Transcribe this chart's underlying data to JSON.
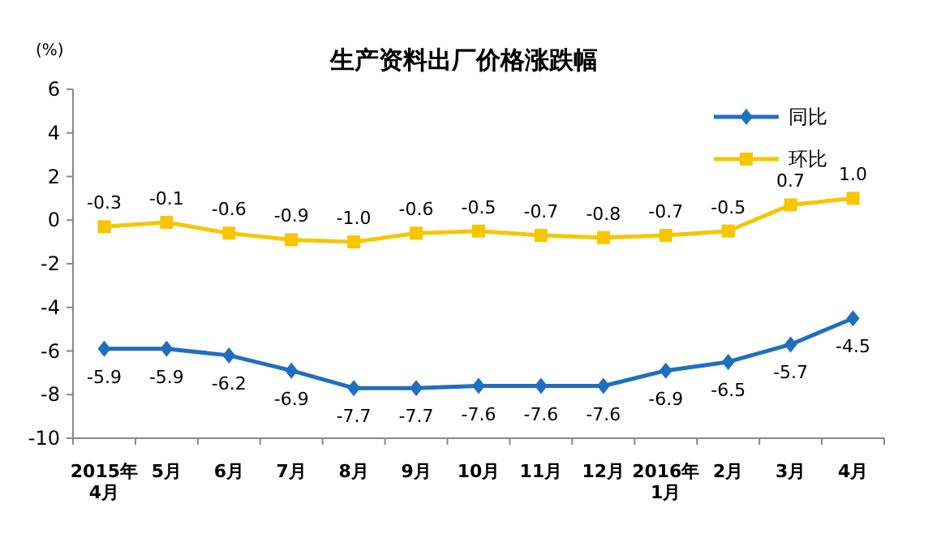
{
  "chart_data": {
    "type": "line",
    "title": "生产资料出厂价格涨跌幅",
    "ylabel": "(%)",
    "categories": [
      "2015年4月",
      "5月",
      "6月",
      "7月",
      "8月",
      "9月",
      "10月",
      "11月",
      "12月",
      "2016年1月",
      "2月",
      "3月",
      "4月"
    ],
    "series": [
      {
        "name": "同比",
        "color": "#1f6fc0",
        "marker": "diamond",
        "values": [
          -5.9,
          -5.9,
          -6.2,
          -6.9,
          -7.7,
          -7.7,
          -7.6,
          -7.6,
          -7.6,
          -6.9,
          -6.5,
          -5.7,
          -4.5
        ],
        "value_labels": [
          "-5.9",
          "-5.9",
          "-6.2",
          "-6.9",
          "-7.7",
          "-7.7",
          "-7.6",
          "-7.6",
          "-7.6",
          "-6.9",
          "-6.5",
          "-5.7",
          "-4.5"
        ]
      },
      {
        "name": "环比",
        "color": "#f7c600",
        "marker": "square",
        "values": [
          -0.3,
          -0.1,
          -0.6,
          -0.9,
          -1.0,
          -0.6,
          -0.5,
          -0.7,
          -0.8,
          -0.7,
          -0.5,
          0.7,
          1.0
        ],
        "value_labels": [
          "-0.3",
          "-0.1",
          "-0.6",
          "-0.9",
          "-1.0",
          "-0.6",
          "-0.5",
          "-0.7",
          "-0.8",
          "-0.7",
          "-0.5",
          "0.7",
          "1.0"
        ]
      }
    ],
    "ylim": [
      -10,
      6
    ],
    "yticks": [
      -10,
      -8,
      -6,
      -4,
      -2,
      0,
      2,
      4,
      6
    ],
    "legend": "top right",
    "grid": false
  }
}
